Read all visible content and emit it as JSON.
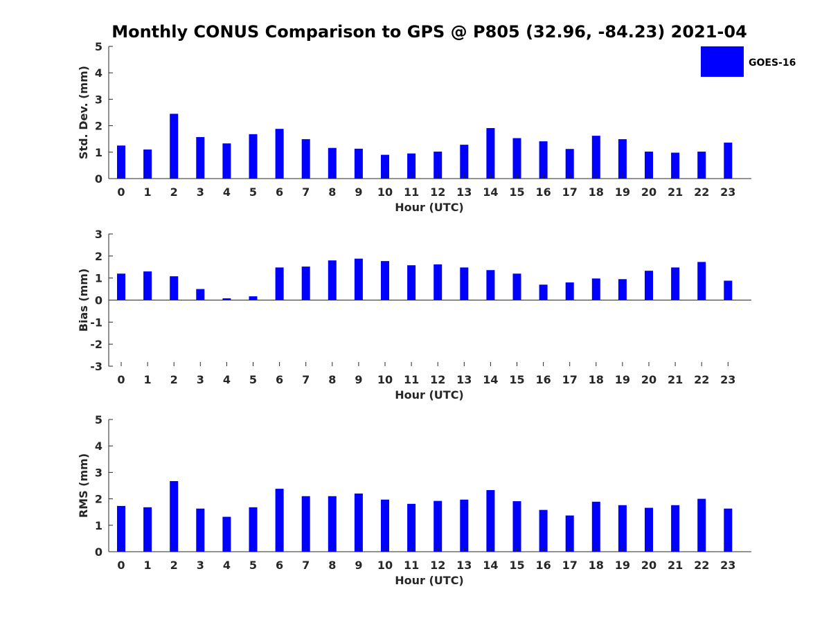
{
  "title": "Monthly CONUS Comparison to GPS @ P805 (32.96, -84.23) 2021-04",
  "legend": {
    "label": "GOES-16",
    "color": "#0000ff",
    "placement": "top-right"
  },
  "chart_data": [
    {
      "type": "bar",
      "title": "Monthly CONUS Comparison to GPS @ P805 (32.96, -84.23) 2021-04",
      "xlabel": "Hour (UTC)",
      "ylabel": "Std. Dev. (mm)",
      "ylim": [
        0,
        5
      ],
      "yticks": [
        0,
        1,
        2,
        3,
        4,
        5
      ],
      "categories": [
        "0",
        "1",
        "2",
        "3",
        "4",
        "5",
        "6",
        "7",
        "8",
        "9",
        "10",
        "11",
        "12",
        "13",
        "14",
        "15",
        "16",
        "17",
        "18",
        "19",
        "20",
        "21",
        "22",
        "23"
      ],
      "series": [
        {
          "name": "GOES-16",
          "color": "#0000ff",
          "values": [
            1.25,
            1.1,
            2.45,
            1.57,
            1.33,
            1.68,
            1.88,
            1.49,
            1.16,
            1.13,
            0.9,
            0.95,
            1.02,
            1.28,
            1.91,
            1.53,
            1.41,
            1.12,
            1.62,
            1.49,
            1.02,
            0.98,
            1.02,
            1.36
          ]
        }
      ],
      "grid": false
    },
    {
      "type": "bar",
      "xlabel": "Hour (UTC)",
      "ylabel": "Bias (mm)",
      "ylim": [
        -3,
        3
      ],
      "yticks": [
        -3,
        -2,
        -1,
        0,
        1,
        2,
        3
      ],
      "categories": [
        "0",
        "1",
        "2",
        "3",
        "4",
        "5",
        "6",
        "7",
        "8",
        "9",
        "10",
        "11",
        "12",
        "13",
        "14",
        "15",
        "16",
        "17",
        "18",
        "19",
        "20",
        "21",
        "22",
        "23"
      ],
      "series": [
        {
          "name": "GOES-16",
          "color": "#0000ff",
          "values": [
            1.2,
            1.3,
            1.08,
            0.5,
            0.08,
            0.17,
            1.48,
            1.52,
            1.8,
            1.88,
            1.77,
            1.58,
            1.62,
            1.48,
            1.36,
            1.2,
            0.7,
            0.8,
            0.98,
            0.95,
            1.33,
            1.48,
            1.73,
            0.88
          ]
        }
      ],
      "grid": false
    },
    {
      "type": "bar",
      "xlabel": "Hour (UTC)",
      "ylabel": "RMS (mm)",
      "ylim": [
        0,
        5
      ],
      "yticks": [
        0,
        1,
        2,
        3,
        4,
        5
      ],
      "categories": [
        "0",
        "1",
        "2",
        "3",
        "4",
        "5",
        "6",
        "7",
        "8",
        "9",
        "10",
        "11",
        "12",
        "13",
        "14",
        "15",
        "16",
        "17",
        "18",
        "19",
        "20",
        "21",
        "22",
        "23"
      ],
      "series": [
        {
          "name": "GOES-16",
          "color": "#0000ff",
          "values": [
            1.73,
            1.68,
            2.67,
            1.63,
            1.32,
            1.68,
            2.38,
            2.1,
            2.1,
            2.2,
            1.97,
            1.81,
            1.92,
            1.97,
            2.33,
            1.91,
            1.58,
            1.37,
            1.89,
            1.76,
            1.66,
            1.76,
            2.0,
            1.63
          ]
        }
      ],
      "grid": false
    }
  ]
}
